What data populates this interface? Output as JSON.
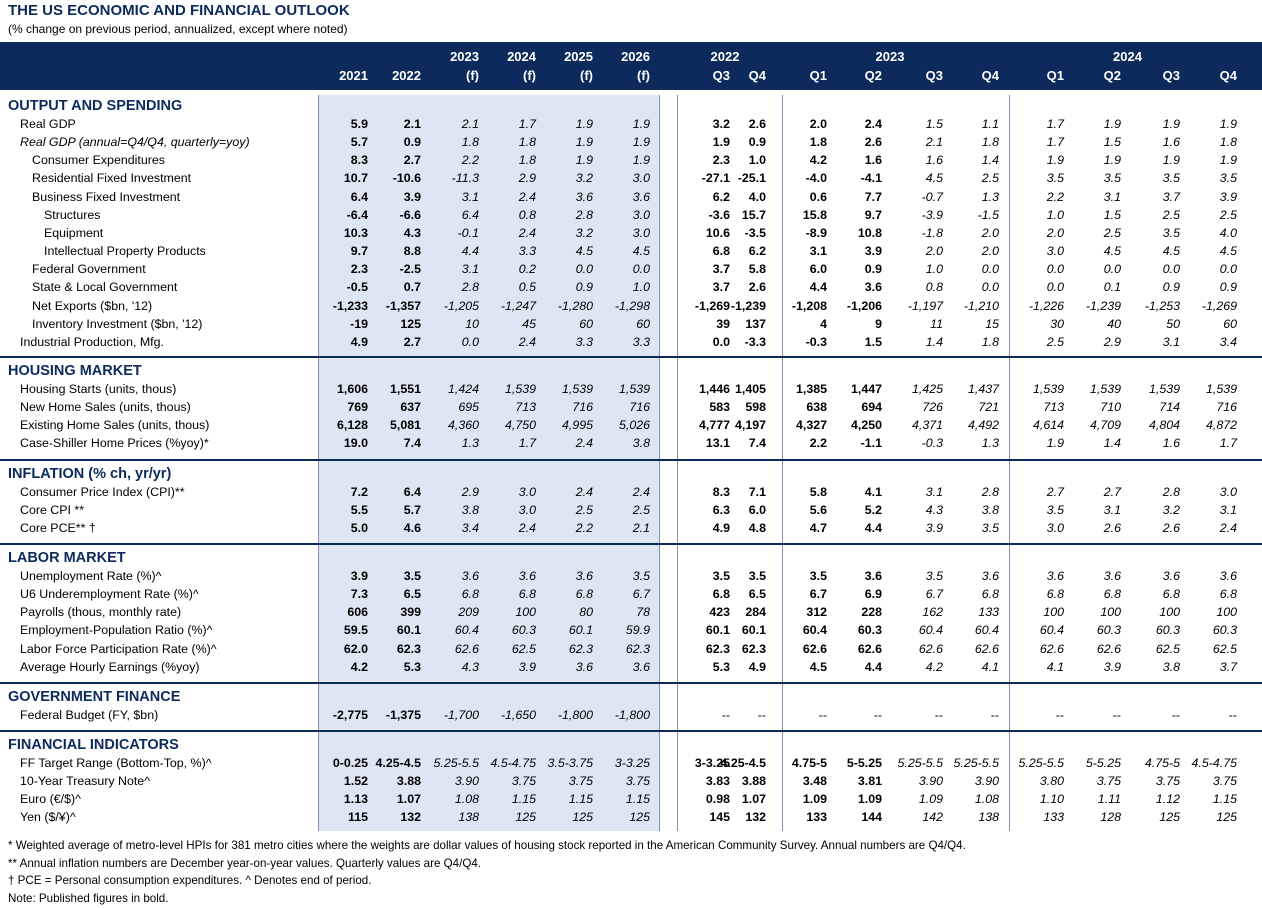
{
  "title": "THE US ECONOMIC AND FINANCIAL OUTLOOK",
  "subtitle": "(% change on previous period, annualized, except where noted)",
  "header": {
    "columns": [
      {
        "top": "",
        "bottom": "2021"
      },
      {
        "top": "",
        "bottom": "2022"
      },
      {
        "top": "2023",
        "bottom": "(f)"
      },
      {
        "top": "2024",
        "bottom": "(f)"
      },
      {
        "top": "2025",
        "bottom": "(f)"
      },
      {
        "top": "2026",
        "bottom": "(f)"
      },
      {
        "top": "",
        "bottom": "Q3"
      },
      {
        "top": "",
        "bottom": "Q4"
      },
      {
        "top": "",
        "bottom": "Q1"
      },
      {
        "top": "",
        "bottom": "Q2"
      },
      {
        "top": "",
        "bottom": "Q3"
      },
      {
        "top": "",
        "bottom": "Q4"
      },
      {
        "top": "",
        "bottom": "Q1"
      },
      {
        "top": "",
        "bottom": "Q2"
      },
      {
        "top": "",
        "bottom": "Q3"
      },
      {
        "top": "",
        "bottom": "Q4"
      }
    ],
    "groups": [
      {
        "label": "2022",
        "from": 6,
        "to": 7
      },
      {
        "label": "2023",
        "from": 8,
        "to": 11
      },
      {
        "label": "2024",
        "from": 12,
        "to": 15
      }
    ]
  },
  "sections": [
    {
      "title": "OUTPUT AND SPENDING",
      "rows": [
        {
          "label": "Real GDP",
          "indent": 0,
          "values": [
            "5.9",
            "2.1",
            "2.1",
            "1.7",
            "1.9",
            "1.9",
            "3.2",
            "2.6",
            "2.0",
            "2.4",
            "1.5",
            "1.1",
            "1.7",
            "1.9",
            "1.9",
            "1.9"
          ]
        },
        {
          "label": "Real GDP (annual=Q4/Q4, quarterly=yoy)",
          "indent": 0,
          "italic_label": true,
          "values": [
            "5.7",
            "0.9",
            "1.8",
            "1.8",
            "1.9",
            "1.9",
            "1.9",
            "0.9",
            "1.8",
            "2.6",
            "2.1",
            "1.8",
            "1.7",
            "1.5",
            "1.6",
            "1.8"
          ]
        },
        {
          "label": "Consumer Expenditures",
          "indent": 1,
          "values": [
            "8.3",
            "2.7",
            "2.2",
            "1.8",
            "1.9",
            "1.9",
            "2.3",
            "1.0",
            "4.2",
            "1.6",
            "1.6",
            "1.4",
            "1.9",
            "1.9",
            "1.9",
            "1.9"
          ]
        },
        {
          "label": "Residential Fixed Investment",
          "indent": 1,
          "values": [
            "10.7",
            "-10.6",
            "-11.3",
            "2.9",
            "3.2",
            "3.0",
            "-27.1",
            "-25.1",
            "-4.0",
            "-4.1",
            "4.5",
            "2.5",
            "3.5",
            "3.5",
            "3.5",
            "3.5"
          ]
        },
        {
          "label": "Business Fixed Investment",
          "indent": 1,
          "values": [
            "6.4",
            "3.9",
            "3.1",
            "2.4",
            "3.6",
            "3.6",
            "6.2",
            "4.0",
            "0.6",
            "7.7",
            "-0.7",
            "1.3",
            "2.2",
            "3.1",
            "3.7",
            "3.9"
          ]
        },
        {
          "label": "Structures",
          "indent": 2,
          "values": [
            "-6.4",
            "-6.6",
            "6.4",
            "0.8",
            "2.8",
            "3.0",
            "-3.6",
            "15.7",
            "15.8",
            "9.7",
            "-3.9",
            "-1.5",
            "1.0",
            "1.5",
            "2.5",
            "2.5"
          ]
        },
        {
          "label": "Equipment",
          "indent": 2,
          "values": [
            "10.3",
            "4.3",
            "-0.1",
            "2.4",
            "3.2",
            "3.0",
            "10.6",
            "-3.5",
            "-8.9",
            "10.8",
            "-1.8",
            "2.0",
            "2.0",
            "2.5",
            "3.5",
            "4.0"
          ]
        },
        {
          "label": "Intellectual Property Products",
          "indent": 2,
          "values": [
            "9.7",
            "8.8",
            "4.4",
            "3.3",
            "4.5",
            "4.5",
            "6.8",
            "6.2",
            "3.1",
            "3.9",
            "2.0",
            "2.0",
            "3.0",
            "4.5",
            "4.5",
            "4.5"
          ]
        },
        {
          "label": "Federal Government",
          "indent": 1,
          "values": [
            "2.3",
            "-2.5",
            "3.1",
            "0.2",
            "0.0",
            "0.0",
            "3.7",
            "5.8",
            "6.0",
            "0.9",
            "1.0",
            "0.0",
            "0.0",
            "0.0",
            "0.0",
            "0.0"
          ]
        },
        {
          "label": "State & Local Government",
          "indent": 1,
          "values": [
            "-0.5",
            "0.7",
            "2.8",
            "0.5",
            "0.9",
            "1.0",
            "3.7",
            "2.6",
            "4.4",
            "3.6",
            "0.8",
            "0.0",
            "0.0",
            "0.1",
            "0.9",
            "0.9"
          ]
        },
        {
          "label": "Net Exports ($bn, '12)",
          "indent": 1,
          "values": [
            "-1,233",
            "-1,357",
            "-1,205",
            "-1,247",
            "-1,280",
            "-1,298",
            "-1,269",
            "-1,239",
            "-1,208",
            "-1,206",
            "-1,197",
            "-1,210",
            "-1,226",
            "-1,239",
            "-1,253",
            "-1,269"
          ]
        },
        {
          "label": "Inventory Investment ($bn, '12)",
          "indent": 1,
          "values": [
            "-19",
            "125",
            "10",
            "45",
            "60",
            "60",
            "39",
            "137",
            "4",
            "9",
            "11",
            "15",
            "30",
            "40",
            "50",
            "60"
          ]
        },
        {
          "label": "Industrial Production, Mfg.",
          "indent": 0,
          "values": [
            "4.9",
            "2.7",
            "0.0",
            "2.4",
            "3.3",
            "3.3",
            "0.0",
            "-3.3",
            "-0.3",
            "1.5",
            "1.4",
            "1.8",
            "2.5",
            "2.9",
            "3.1",
            "3.4"
          ]
        }
      ]
    },
    {
      "title": "HOUSING MARKET",
      "rows": [
        {
          "label": "Housing Starts (units, thous)",
          "indent": 0,
          "values": [
            "1,606",
            "1,551",
            "1,424",
            "1,539",
            "1,539",
            "1,539",
            "1,446",
            "1,405",
            "1,385",
            "1,447",
            "1,425",
            "1,437",
            "1,539",
            "1,539",
            "1,539",
            "1,539"
          ]
        },
        {
          "label": "New Home Sales (units, thous)",
          "indent": 0,
          "values": [
            "769",
            "637",
            "695",
            "713",
            "716",
            "716",
            "583",
            "598",
            "638",
            "694",
            "726",
            "721",
            "713",
            "710",
            "714",
            "716"
          ]
        },
        {
          "label": "Existing Home Sales (units, thous)",
          "indent": 0,
          "values": [
            "6,128",
            "5,081",
            "4,360",
            "4,750",
            "4,995",
            "5,026",
            "4,777",
            "4,197",
            "4,327",
            "4,250",
            "4,371",
            "4,492",
            "4,614",
            "4,709",
            "4,804",
            "4,872"
          ]
        },
        {
          "label": "Case-Shiller Home Prices (%yoy)*",
          "indent": 0,
          "values": [
            "19.0",
            "7.4",
            "1.3",
            "1.7",
            "2.4",
            "3.8",
            "13.1",
            "7.4",
            "2.2",
            "-1.1",
            "-0.3",
            "1.3",
            "1.9",
            "1.4",
            "1.6",
            "1.7"
          ]
        }
      ]
    },
    {
      "title": "INFLATION (% ch, yr/yr)",
      "rows": [
        {
          "label": "Consumer Price Index (CPI)**",
          "indent": 0,
          "values": [
            "7.2",
            "6.4",
            "2.9",
            "3.0",
            "2.4",
            "2.4",
            "8.3",
            "7.1",
            "5.8",
            "4.1",
            "3.1",
            "2.8",
            "2.7",
            "2.7",
            "2.8",
            "3.0"
          ]
        },
        {
          "label": "Core CPI **",
          "indent": 0,
          "values": [
            "5.5",
            "5.7",
            "3.8",
            "3.0",
            "2.5",
            "2.5",
            "6.3",
            "6.0",
            "5.6",
            "5.2",
            "4.3",
            "3.8",
            "3.5",
            "3.1",
            "3.2",
            "3.1"
          ]
        },
        {
          "label": "Core PCE** †",
          "indent": 0,
          "values": [
            "5.0",
            "4.6",
            "3.4",
            "2.4",
            "2.2",
            "2.1",
            "4.9",
            "4.8",
            "4.7",
            "4.4",
            "3.9",
            "3.5",
            "3.0",
            "2.6",
            "2.6",
            "2.4"
          ]
        }
      ]
    },
    {
      "title": "LABOR MARKET",
      "rows": [
        {
          "label": "Unemployment Rate (%)^",
          "indent": 0,
          "values": [
            "3.9",
            "3.5",
            "3.6",
            "3.6",
            "3.6",
            "3.5",
            "3.5",
            "3.5",
            "3.5",
            "3.6",
            "3.5",
            "3.6",
            "3.6",
            "3.6",
            "3.6",
            "3.6"
          ]
        },
        {
          "label": "U6 Underemployment Rate (%)^",
          "indent": 0,
          "values": [
            "7.3",
            "6.5",
            "6.8",
            "6.8",
            "6.8",
            "6.7",
            "6.8",
            "6.5",
            "6.7",
            "6.9",
            "6.7",
            "6.8",
            "6.8",
            "6.8",
            "6.8",
            "6.8"
          ]
        },
        {
          "label": "Payrolls (thous, monthly rate)",
          "indent": 0,
          "values": [
            "606",
            "399",
            "209",
            "100",
            "80",
            "78",
            "423",
            "284",
            "312",
            "228",
            "162",
            "133",
            "100",
            "100",
            "100",
            "100"
          ]
        },
        {
          "label": "Employment-Population Ratio (%)^",
          "indent": 0,
          "values": [
            "59.5",
            "60.1",
            "60.4",
            "60.3",
            "60.1",
            "59.9",
            "60.1",
            "60.1",
            "60.4",
            "60.3",
            "60.4",
            "60.4",
            "60.4",
            "60.3",
            "60.3",
            "60.3"
          ]
        },
        {
          "label": "Labor Force Participation Rate (%)^",
          "indent": 0,
          "values": [
            "62.0",
            "62.3",
            "62.6",
            "62.5",
            "62.3",
            "62.3",
            "62.3",
            "62.3",
            "62.6",
            "62.6",
            "62.6",
            "62.6",
            "62.6",
            "62.6",
            "62.5",
            "62.5"
          ]
        },
        {
          "label": "Average Hourly Earnings (%yoy)",
          "indent": 0,
          "values": [
            "4.2",
            "5.3",
            "4.3",
            "3.9",
            "3.6",
            "3.6",
            "5.3",
            "4.9",
            "4.5",
            "4.4",
            "4.2",
            "4.1",
            "4.1",
            "3.9",
            "3.8",
            "3.7"
          ]
        }
      ]
    },
    {
      "title": "GOVERNMENT FINANCE",
      "rows": [
        {
          "label": "Federal Budget (FY, $bn)",
          "indent": 0,
          "values": [
            "-2,775",
            "-1,375",
            "-1,700",
            "-1,650",
            "-1,800",
            "-1,800",
            "--",
            "--",
            "--",
            "--",
            "--",
            "--",
            "--",
            "--",
            "--",
            "--"
          ]
        }
      ]
    },
    {
      "title": "FINANCIAL INDICATORS",
      "rows": [
        {
          "label": "FF Target Range (Bottom-Top, %)^",
          "indent": 0,
          "values": [
            "0-0.25",
            "4.25-4.5",
            "5.25-5.5",
            "4.5-4.75",
            "3.5-3.75",
            "3-3.25",
            "3-3.25",
            "4.25-4.5",
            "4.75-5",
            "5-5.25",
            "5.25-5.5",
            "5.25-5.5",
            "5.25-5.5",
            "5-5.25",
            "4.75-5",
            "4.5-4.75"
          ]
        },
        {
          "label": "10-Year Treasury Note^",
          "indent": 0,
          "values": [
            "1.52",
            "3.88",
            "3.90",
            "3.75",
            "3.75",
            "3.75",
            "3.83",
            "3.88",
            "3.48",
            "3.81",
            "3.90",
            "3.90",
            "3.80",
            "3.75",
            "3.75",
            "3.75"
          ]
        },
        {
          "label": "Euro (€/$)^",
          "indent": 0,
          "values": [
            "1.13",
            "1.07",
            "1.08",
            "1.15",
            "1.15",
            "1.15",
            "0.98",
            "1.07",
            "1.09",
            "1.09",
            "1.09",
            "1.08",
            "1.10",
            "1.11",
            "1.12",
            "1.15"
          ]
        },
        {
          "label": "Yen ($/¥)^",
          "indent": 0,
          "values": [
            "115",
            "132",
            "138",
            "125",
            "125",
            "125",
            "145",
            "132",
            "133",
            "144",
            "142",
            "138",
            "133",
            "128",
            "125",
            "125"
          ]
        }
      ]
    }
  ],
  "bold_columns": [
    0,
    1,
    6,
    7,
    8,
    9
  ],
  "footnotes": [
    "* Weighted average of metro-level HPIs for 381 metro cities where the weights are dollar values of housing stock reported in the American Community Survey. Annual numbers are Q4/Q4.",
    "** Annual inflation numbers are December year-on-year values. Quarterly values are Q4/Q4.",
    "† PCE = Personal consumption expenditures.  ^ Denotes end of period.",
    "Note: Published figures in bold."
  ]
}
